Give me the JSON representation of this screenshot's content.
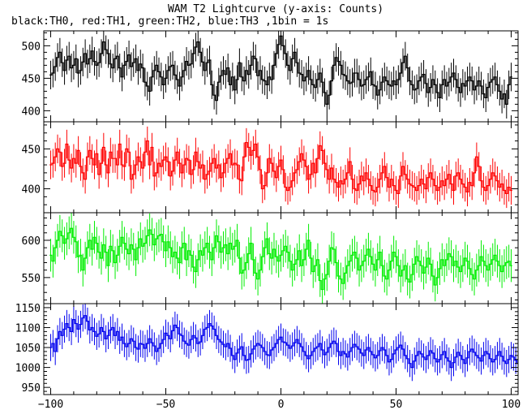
{
  "title": "WAM T2 Lightcurve (y-axis: Counts)",
  "subtitle": "black:TH0, red:TH1, green:TH2, blue:TH3 ,1bin = 1s",
  "chart_data": {
    "type": "line",
    "title": "WAM T2 Lightcurve (y-axis: Counts)",
    "subtitle": "black:TH0, red:TH1, green:TH2, blue:TH3 ,1bin = 1s",
    "xlabel": "",
    "ylabel": "",
    "grid": false,
    "xlim": [
      -103,
      103
    ],
    "x_ticks": [
      -100,
      -50,
      0,
      50,
      100
    ],
    "x_tick_labels": [
      "−100",
      "−50",
      "0",
      "50",
      "100"
    ],
    "x_start": -100,
    "bin_width": 1,
    "error_bars": true,
    "panels": [
      {
        "name": "TH0",
        "color": "#000000",
        "ylim": [
          383,
          523
        ],
        "y_ticks": [
          400,
          450,
          500
        ],
        "y_tick_labels": [
          "400",
          "450",
          "500"
        ],
        "error": 22,
        "values": [
          455,
          458,
          468,
          482,
          490,
          474,
          462,
          478,
          484,
          466,
          470,
          480,
          458,
          462,
          475,
          488,
          472,
          480,
          492,
          476,
          470,
          474,
          488,
          506,
          494,
          488,
          472,
          466,
          480,
          484,
          466,
          452,
          470,
          476,
          486,
          468,
          474,
          480,
          462,
          472,
          466,
          444,
          438,
          430,
          452,
          462,
          470,
          460,
          452,
          440,
          450,
          462,
          468,
          470,
          455,
          448,
          438,
          452,
          462,
          476,
          470,
          472,
          488,
          498,
          506,
          490,
          475,
          462,
          474,
          478,
          440,
          424,
          416,
          444,
          454,
          462,
          456,
          466,
          440,
          452,
          432,
          448,
          474,
          452,
          446,
          462,
          456,
          470,
          484,
          480,
          454,
          462,
          448,
          446,
          440,
          452,
          448,
          470,
          488,
          502,
          515,
          500,
          488,
          470,
          462,
          480,
          490,
          474,
          458,
          456,
          446,
          452,
          462,
          448,
          440,
          436,
          448,
          458,
          444,
          428,
          410,
          424,
          446,
          470,
          482,
          476,
          470,
          456,
          454,
          446,
          442,
          444,
          458,
          458,
          448,
          438,
          440,
          448,
          452,
          460,
          440,
          438,
          424,
          432,
          444,
          452,
          446,
          440,
          438,
          446,
          440,
          448,
          458,
          474,
          484,
          466,
          446,
          440,
          432,
          434,
          446,
          452,
          456,
          442,
          428,
          436,
          448,
          440,
          428,
          420,
          440,
          448,
          438,
          444,
          452,
          458,
          448,
          436,
          428,
          442,
          438,
          446,
          452,
          446,
          432,
          438,
          446,
          438,
          426,
          420,
          436,
          444,
          448,
          452,
          440,
          430,
          418,
          426,
          410,
          440,
          452
        ]
      },
      {
        "name": "TH1",
        "color": "#ff0000",
        "ylim": [
          370,
          484
        ],
        "y_ticks": [
          400,
          450
        ],
        "y_tick_labels": [
          "400",
          "450"
        ],
        "error": 18,
        "values": [
          430,
          432,
          440,
          450,
          446,
          428,
          432,
          456,
          436,
          426,
          438,
          432,
          448,
          428,
          420,
          412,
          440,
          448,
          438,
          430,
          444,
          418,
          432,
          452,
          430,
          420,
          446,
          438,
          438,
          430,
          456,
          430,
          428,
          450,
          446,
          412,
          418,
          430,
          440,
          434,
          426,
          446,
          460,
          430,
          452,
          416,
          420,
          432,
          428,
          436,
          440,
          434,
          416,
          422,
          436,
          446,
          432,
          420,
          430,
          438,
          436,
          418,
          424,
          446,
          434,
          426,
          430,
          412,
          418,
          422,
          432,
          438,
          426,
          430,
          414,
          420,
          432,
          438,
          444,
          430,
          432,
          430,
          412,
          410,
          440,
          458,
          452,
          442,
          448,
          456,
          440,
          424,
          400,
          404,
          420,
          438,
          432,
          422,
          414,
          428,
          436,
          424,
          402,
          398,
          402,
          410,
          420,
          424,
          434,
          444,
          436,
          428,
          412,
          418,
          432,
          420,
          438,
          454,
          448,
          432,
          424,
          412,
          426,
          412,
          408,
          402,
          410,
          406,
          412,
          420,
          434,
          412,
          400,
          398,
          406,
          416,
          410,
          420,
          412,
          404,
          398,
          396,
          402,
          412,
          420,
          428,
          414,
          402,
          412,
          404,
          398,
          394,
          416,
          428,
          418,
          412,
          406,
          404,
          402,
          398,
          404,
          412,
          406,
          400,
          414,
          420,
          412,
          404,
          398,
          402,
          410,
          404,
          412,
          418,
          406,
          398,
          416,
          420,
          412,
          406,
          402,
          396,
          408,
          404,
          420,
          440,
          428,
          410,
          402,
          398,
          404,
          412,
          420,
          416,
          410,
          402,
          406,
          398,
          394,
          402,
          398
        ]
      },
      {
        "name": "TH2",
        "color": "#00ee00",
        "ylim": [
          515,
          637
        ],
        "y_ticks": [
          550,
          600
        ],
        "y_tick_labels": [
          "550",
          "600"
        ],
        "error": 22,
        "values": [
          580,
          572,
          590,
          600,
          612,
          606,
          596,
          602,
          610,
          616,
          604,
          598,
          578,
          580,
          560,
          576,
          590,
          600,
          588,
          604,
          596,
          584,
          576,
          594,
          584,
          566,
          592,
          586,
          570,
          580,
          592,
          604,
          596,
          588,
          582,
          594,
          588,
          574,
          590,
          602,
          592,
          596,
          606,
          614,
          608,
          594,
          602,
          606,
          608,
          598,
          586,
          598,
          590,
          578,
          584,
          576,
          570,
          590,
          596,
          574,
          586,
          580,
          564,
          558,
          574,
          586,
          580,
          590,
          596,
          584,
          574,
          590,
          606,
          598,
          584,
          590,
          594,
          582,
          596,
          588,
          592,
          600,
          576,
          556,
          560,
          570,
          582,
          596,
          574,
          556,
          548,
          560,
          578,
          590,
          602,
          582,
          576,
          588,
          578,
          572,
          580,
          586,
          592,
          584,
          572,
          560,
          568,
          574,
          586,
          566,
          574,
          588,
          600,
          576,
          558,
          566,
          574,
          546,
          534,
          548,
          554,
          572,
          590,
          588,
          570,
          552,
          548,
          542,
          556,
          566,
          572,
          580,
          584,
          576,
          560,
          566,
          572,
          580,
          588,
          578,
          568,
          560,
          574,
          584,
          566,
          552,
          548,
          560,
          572,
          584,
          578,
          566,
          552,
          560,
          566,
          548,
          544,
          554,
          568,
          578,
          572,
          566,
          556,
          564,
          576,
          568,
          552,
          540,
          550,
          562,
          574,
          566,
          574,
          582,
          578,
          566,
          572,
          564,
          558,
          566,
          576,
          572,
          562,
          554,
          548,
          560,
          566,
          578,
          572,
          566,
          560,
          568,
          574,
          580,
          572,
          566,
          558,
          566,
          570,
          572,
          566
        ]
      },
      {
        "name": "TH3",
        "color": "#0000ee",
        "ylim": [
          932,
          1160
        ],
        "y_ticks": [
          950,
          1000,
          1050,
          1100,
          1150
        ],
        "y_tick_labels": [
          "950",
          "1000",
          "1050",
          "1100",
          "1150"
        ],
        "error": 34,
        "values": [
          1050,
          1060,
          1040,
          1072,
          1090,
          1080,
          1096,
          1110,
          1100,
          1090,
          1120,
          1110,
          1096,
          1108,
          1124,
          1130,
          1116,
          1094,
          1100,
          1090,
          1078,
          1084,
          1100,
          1090,
          1072,
          1080,
          1094,
          1100,
          1080,
          1090,
          1068,
          1076,
          1060,
          1052,
          1060,
          1072,
          1066,
          1050,
          1046,
          1060,
          1058,
          1048,
          1060,
          1072,
          1062,
          1054,
          1040,
          1048,
          1060,
          1070,
          1086,
          1080,
          1072,
          1092,
          1106,
          1100,
          1084,
          1080,
          1066,
          1060,
          1056,
          1070,
          1080,
          1074,
          1060,
          1064,
          1080,
          1096,
          1100,
          1110,
          1104,
          1096,
          1080,
          1070,
          1064,
          1058,
          1052,
          1060,
          1048,
          1030,
          1020,
          1036,
          1046,
          1052,
          1030,
          1018,
          1020,
          1034,
          1046,
          1054,
          1060,
          1056,
          1050,
          1040,
          1032,
          1030,
          1044,
          1050,
          1060,
          1070,
          1076,
          1064,
          1062,
          1056,
          1048,
          1054,
          1062,
          1070,
          1060,
          1052,
          1040,
          1030,
          1022,
          1030,
          1040,
          1048,
          1052,
          1060,
          1044,
          1032,
          1038,
          1050,
          1060,
          1066,
          1060,
          1040,
          1030,
          1040,
          1034,
          1026,
          1040,
          1050,
          1058,
          1052,
          1046,
          1036,
          1030,
          1044,
          1050,
          1040,
          1032,
          1024,
          1030,
          1042,
          1050,
          1044,
          1030,
          1014,
          1020,
          1034,
          1044,
          1050,
          1056,
          1046,
          1030,
          1022,
          1010,
          1000,
          1016,
          1030,
          1040,
          1034,
          1026,
          1020,
          1030,
          1042,
          1036,
          1022,
          1014,
          1020,
          1032,
          1040,
          1024,
          1016,
          1000,
          1012,
          1026,
          1038,
          1030,
          1020,
          1010,
          1024,
          1040,
          1046,
          1038,
          1030,
          1024,
          1016,
          1030,
          1040,
          1034,
          1022,
          1014,
          1020,
          1030,
          1040,
          1028,
          1016,
          1010,
          1020,
          1030,
          1026,
          1018,
          1010,
          1008
        ]
      }
    ]
  }
}
